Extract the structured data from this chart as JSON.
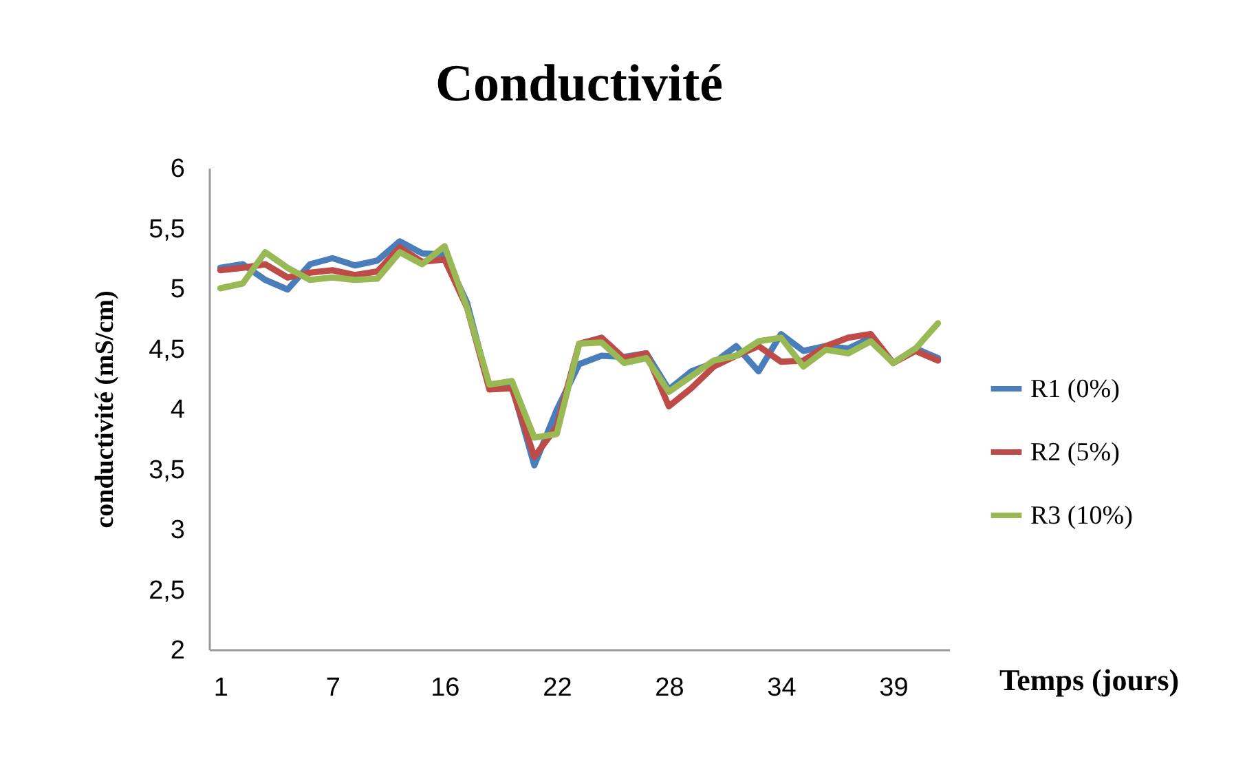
{
  "chart_data": {
    "type": "line",
    "title": "Conductivité",
    "xlabel": "Temps (jours)",
    "ylabel": "conductivité (mS/cm)",
    "categories": [
      "1",
      null,
      null,
      null,
      null,
      "7",
      null,
      null,
      null,
      null,
      "16",
      null,
      null,
      null,
      null,
      "22",
      null,
      null,
      null,
      null,
      "28",
      null,
      null,
      null,
      null,
      "34",
      null,
      null,
      null,
      null,
      "39",
      null,
      null
    ],
    "series": [
      {
        "name": "R1 (0%)",
        "color": "#4a7ebb",
        "values": [
          5.17,
          5.2,
          5.07,
          4.99,
          5.2,
          5.25,
          5.19,
          5.23,
          5.39,
          5.29,
          5.28,
          4.88,
          4.17,
          4.19,
          3.53,
          3.99,
          4.37,
          4.44,
          4.43,
          4.46,
          4.16,
          4.31,
          4.38,
          4.52,
          4.31,
          4.62,
          4.48,
          4.52,
          4.5,
          4.59,
          4.38,
          4.5,
          4.42
        ]
      },
      {
        "name": "R2 (5%)",
        "color": "#be4b48",
        "values": [
          5.15,
          5.17,
          5.2,
          5.09,
          5.13,
          5.15,
          5.11,
          5.14,
          5.34,
          5.22,
          5.24,
          4.84,
          4.16,
          4.17,
          3.6,
          3.85,
          4.54,
          4.59,
          4.42,
          4.46,
          4.02,
          4.17,
          4.35,
          4.44,
          4.52,
          4.39,
          4.4,
          4.52,
          4.59,
          4.62,
          4.38,
          4.48,
          4.4
        ]
      },
      {
        "name": "R3  (10%)",
        "color": "#98b954",
        "values": [
          5.0,
          5.04,
          5.3,
          5.17,
          5.07,
          5.09,
          5.07,
          5.08,
          5.3,
          5.2,
          5.35,
          4.84,
          4.2,
          4.23,
          3.76,
          3.79,
          4.54,
          4.55,
          4.38,
          4.42,
          4.14,
          4.27,
          4.4,
          4.44,
          4.56,
          4.59,
          4.35,
          4.49,
          4.46,
          4.56,
          4.38,
          4.5,
          4.71
        ]
      }
    ],
    "ylim": [
      2,
      6
    ],
    "yticks": [
      2,
      {
        "value": 2.5,
        "label": "2,5"
      },
      3,
      {
        "value": 3.5,
        "label": "3,5"
      },
      4,
      {
        "value": 4.5,
        "label": "4,5"
      },
      5,
      {
        "value": 5.5,
        "label": "5,5"
      },
      6
    ],
    "grid": false,
    "legend": "right",
    "marker": "none",
    "line_style": "solid"
  }
}
